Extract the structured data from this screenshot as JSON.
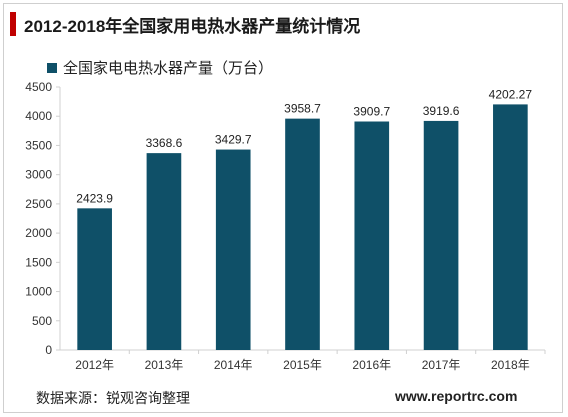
{
  "title": "2012-2018年全国家用电热水器产量统计情况",
  "source": "数据来源：锐观咨询整理",
  "website": "www.reportrc.com",
  "colors": {
    "bar": "#0f5068",
    "title_accent": "#c00000"
  },
  "chart_data": {
    "type": "bar",
    "title": "",
    "xlabel": "",
    "ylabel": "",
    "categories": [
      "2012年",
      "2013年",
      "2014年",
      "2015年",
      "2016年",
      "2017年",
      "2018年"
    ],
    "series": [
      {
        "name": "全国家电电热水器产量（万台）",
        "values": [
          2423.9,
          3368.6,
          3429.7,
          3958.7,
          3909.7,
          3919.6,
          4202.27
        ],
        "labels": [
          "2423.9",
          "3368.6",
          "3429.7",
          "3958.7",
          "3909.7",
          "3919.6",
          "4202.27"
        ]
      }
    ],
    "ylim": [
      0,
      4500
    ],
    "yticks": [
      0,
      500,
      1000,
      1500,
      2000,
      2500,
      3000,
      3500,
      4000,
      4500
    ],
    "grid": false,
    "legend_position": "top-left"
  }
}
